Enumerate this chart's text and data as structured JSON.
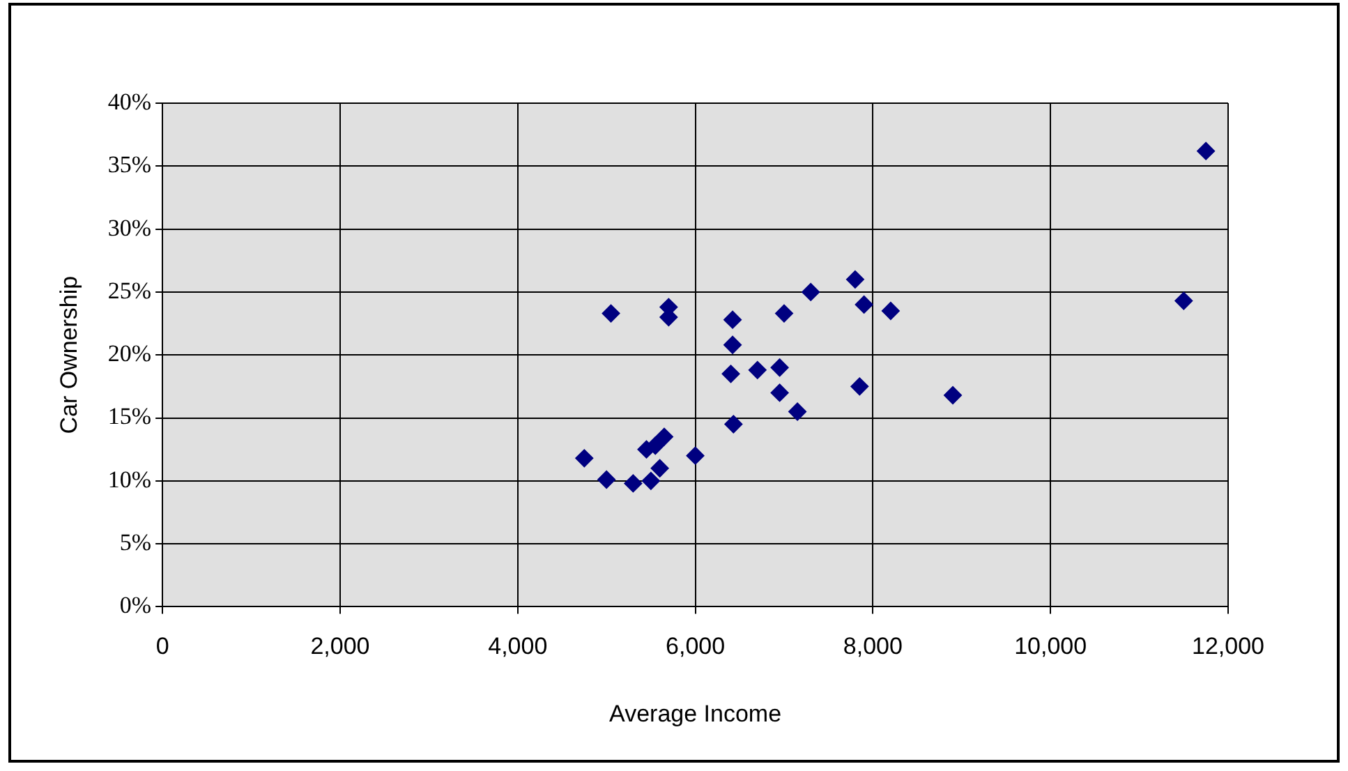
{
  "chart_data": {
    "type": "scatter",
    "xlabel": "Average Income",
    "ylabel": "Car Ownership",
    "marker": "diamond",
    "grid": true,
    "legend": false,
    "series": [
      {
        "color": "#000080",
        "x": [
          4750,
          5000,
          5050,
          5300,
          5450,
          5500,
          5550,
          5600,
          5650,
          5700,
          5700,
          6000,
          6400,
          6420,
          6420,
          6430,
          6700,
          6950,
          6950,
          7000,
          7150,
          7300,
          7800,
          7850,
          7900,
          8200,
          8900,
          11500,
          11750
        ],
        "values": [
          11.8,
          10.1,
          23.3,
          9.8,
          12.5,
          10,
          12.8,
          11,
          13.5,
          23.8,
          23,
          12,
          18.5,
          22.8,
          20.8,
          14.5,
          18.8,
          19,
          17,
          23.3,
          15.5,
          25,
          26,
          17.5,
          24,
          23.5,
          16.8,
          24.3,
          36.2
        ]
      }
    ],
    "xlim": [
      0,
      12000
    ],
    "xticks": [
      {
        "value": 0,
        "label": "0"
      },
      {
        "value": 2000,
        "label": "2,000"
      },
      {
        "value": 4000,
        "label": "4,000"
      },
      {
        "value": 6000,
        "label": "6,000"
      },
      {
        "value": 8000,
        "label": "8,000"
      },
      {
        "value": 10000,
        "label": "10,000"
      },
      {
        "value": 12000,
        "label": "12,000"
      }
    ],
    "ylim": [
      0,
      40
    ],
    "yticks": [
      {
        "value": 0,
        "label": "0%"
      },
      {
        "value": 5,
        "label": "5%"
      },
      {
        "value": 10,
        "label": "10%"
      },
      {
        "value": 15,
        "label": "15%"
      },
      {
        "value": 20,
        "label": "20%"
      },
      {
        "value": 25,
        "label": "25%"
      },
      {
        "value": 30,
        "label": "30%"
      },
      {
        "value": 35,
        "label": "35%"
      },
      {
        "value": 40,
        "label": "40%"
      }
    ]
  }
}
